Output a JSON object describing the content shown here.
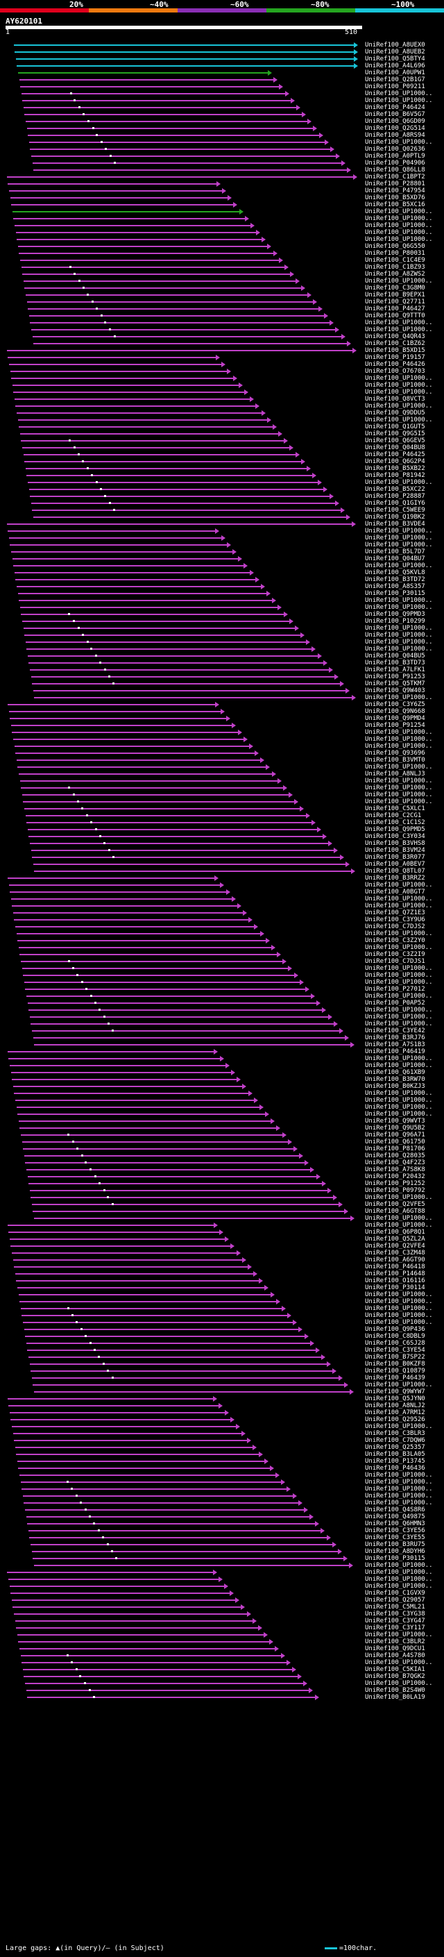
{
  "scale": {
    "labels": [
      "20%",
      "~40%",
      "~60%",
      "~80%",
      "~100%"
    ],
    "colors": [
      "#e0001c",
      "#f07a10",
      "#8a2fb5",
      "#25a520",
      "#18c4d8"
    ]
  },
  "query": {
    "name": "AY620101",
    "start": "1",
    "end": "510"
  },
  "hits": [
    "UniRef100_A8UEX0",
    "UniRef100_A8UEB2",
    "UniRef100_Q5BTY4",
    "UniRef100_A4L696",
    "UniRef100_A0UPW1",
    "UniRef100_Q2B1G7",
    "UniRef100_P09211",
    "UniRef100_UP1000..",
    "UniRef100_UP1000..",
    "UniRef100_P46424",
    "UniRef100_B6V5G7",
    "UniRef100_Q6GD09",
    "UniRef100_Q2G514",
    "UniRef100_A8RS94",
    "UniRef100_UP1000..",
    "UniRef100_Q02636",
    "UniRef100_A0PTL9",
    "UniRef100_P04906",
    "UniRef100_Q86LL8",
    "UniRef100_C1BPT2",
    "UniRef100_P28801",
    "UniRef100_P47954",
    "UniRef100_B5XD76",
    "UniRef100_B5XC16",
    "UniRef100_UP1000..",
    "UniRef100_UP1000..",
    "UniRef100_UP1000..",
    "UniRef100_UP1000..",
    "UniRef100_UP1000..",
    "UniRef100_Q6G550",
    "UniRef100_P80031",
    "UniRef100_C1C4E9",
    "UniRef100_C1BZ93",
    "UniRef100_A8ZWS2",
    "UniRef100_UP1000..",
    "UniRef100_C3G8M0",
    "UniRef100_B9EPX1",
    "UniRef100_Q27711",
    "UniRef100_P46427",
    "UniRef100_Q9TTT0",
    "UniRef100_UP1000..",
    "UniRef100_UP1000..",
    "UniRef100_Q4QR43",
    "UniRef100_C1BZ62",
    "UniRef100_B5XD15",
    "UniRef100_P19157",
    "UniRef100_P46426",
    "UniRef100_O76703",
    "UniRef100_UP1000..",
    "UniRef100_UP1000..",
    "UniRef100_UP1000..",
    "UniRef100_Q8VCT3",
    "UniRef100_UP1000..",
    "UniRef100_Q9DDU5",
    "UniRef100_UP1000..",
    "UniRef100_Q1GUT5",
    "UniRef100_Q9G5I5",
    "UniRef100_Q6GEV5",
    "UniRef100_Q04BU8",
    "UniRef100_P46425",
    "UniRef100_Q6G2P4",
    "UniRef100_B5XB22",
    "UniRef100_P81942",
    "UniRef100_UP1000..",
    "UniRef100_B5XC22",
    "UniRef100_P28887",
    "UniRef100_Q1GIY6",
    "UniRef100_C5WEE9",
    "UniRef100_Q19BK2",
    "UniRef100_B3VDE4",
    "UniRef100_UP1000..",
    "UniRef100_UP1000..",
    "UniRef100_UP1000..",
    "UniRef100_B5L7D7",
    "UniRef100_Q04BU7",
    "UniRef100_UP1000..",
    "UniRef100_Q5KVL8",
    "UniRef100_B3TD72",
    "UniRef100_A8S357",
    "UniRef100_P30115",
    "UniRef100_UP1000..",
    "UniRef100_UP1000..",
    "UniRef100_Q9PMD3",
    "UniRef100_P10299",
    "UniRef100_UP1000..",
    "UniRef100_UP1000..",
    "UniRef100_UP1000..",
    "UniRef100_UP1000..",
    "UniRef100_Q04BU5",
    "UniRef100_B3TD73",
    "UniRef100_A7LFK1",
    "UniRef100_P91253",
    "UniRef100_Q5TKM7",
    "UniRef100_Q9W403",
    "UniRef100_UP1000..",
    "UniRef100_C3Y6Z5",
    "UniRef100_Q9N668",
    "UniRef100_Q9PMD4",
    "UniRef100_P91254",
    "UniRef100_UP1000..",
    "UniRef100_UP1000..",
    "UniRef100_UP1000..",
    "UniRef100_Q93696",
    "UniRef100_B3VMT0",
    "UniRef100_UP1000..",
    "UniRef100_A8NLJ3",
    "UniRef100_UP1000..",
    "UniRef100_UP1000..",
    "UniRef100_UP1000..",
    "UniRef100_UP1000..",
    "UniRef100_C5XLC1",
    "UniRef100_C2CG1",
    "UniRef100_C1C1S2",
    "UniRef100_Q9PMD5",
    "UniRef100_C3Y034",
    "UniRef100_B3VHS8",
    "UniRef100_B3VM24",
    "UniRef100_B3R077",
    "UniRef100_A0BEV7",
    "UniRef100_Q8TL07",
    "UniRef100_B3RRZ2",
    "UniRef100_UP1000..",
    "UniRef100_A0BGT7",
    "UniRef100_UP1000..",
    "UniRef100_UP1000..",
    "UniRef100_Q7Z1E3",
    "UniRef100_C3Y9U6",
    "UniRef100_C7DJS2",
    "UniRef100_UP1000..",
    "UniRef100_C3Z2Y0",
    "UniRef100_UP1000..",
    "UniRef100_C3Z2I9",
    "UniRef100_C7DJS1",
    "UniRef100_UP1000..",
    "UniRef100_UP1000..",
    "UniRef100_UP1000..",
    "UniRef100_P27012",
    "UniRef100_UP1000..",
    "UniRef100_P0AP52",
    "UniRef100_UP1000..",
    "UniRef100_UP1000..",
    "UniRef100_UP1000..",
    "UniRef100_C3YE42",
    "UniRef100_B3RJ76",
    "UniRef100_A7S1B3",
    "UniRef100_P46419",
    "UniRef100_UP1000..",
    "UniRef100_UP1000..",
    "UniRef100_Q61XB9",
    "UniRef100_B3RW70",
    "UniRef100_B0KZJ3",
    "UniRef100_UP1000..",
    "UniRef100_UP1000..",
    "UniRef100_UP1000..",
    "UniRef100_UP1000..",
    "UniRef100_Q9WVT3",
    "UniRef100_Q9U5B2",
    "UniRef100_Q96A71",
    "UniRef100_Q61750",
    "UniRef100_P81706",
    "UniRef100_Q28035",
    "UniRef100_Q4F2Z3",
    "UniRef100_A7S8K8",
    "UniRef100_P20432",
    "UniRef100_P91252",
    "UniRef100_P09792",
    "UniRef100_UP1000..",
    "UniRef100_Q2VFE5",
    "UniRef100_A6GT88",
    "UniRef100_UP1000..",
    "UniRef100_UP1000..",
    "UniRef100_Q6P8Q1",
    "UniRef100_Q5ZL2A",
    "UniRef100_Q2VFE4",
    "UniRef100_C3ZM48",
    "UniRef100_A6GT90",
    "UniRef100_P46418",
    "UniRef100_P14648",
    "UniRef100_O16116",
    "UniRef100_P30114",
    "UniRef100_UP1000..",
    "UniRef100_UP1000..",
    "UniRef100_UP1000..",
    "UniRef100_UP1000..",
    "UniRef100_UP1000..",
    "UniRef100_Q9P436",
    "UniRef100_C8DBL9",
    "UniRef100_C6SJ28",
    "UniRef100_C3YE54",
    "UniRef100_B7SP22",
    "UniRef100_B0KZF8",
    "UniRef100_Q10879",
    "UniRef100_P46439",
    "UniRef100_UP1000..",
    "UniRef100_Q9WYW7",
    "UniRef100_Q5JYN0",
    "UniRef100_A8NLJ2",
    "UniRef100_A7RM12",
    "UniRef100_Q29526",
    "UniRef100_UP1000..",
    "UniRef100_C3BLR3",
    "UniRef100_C7DQW6",
    "UniRef100_Q25357",
    "UniRef100_B3LA05",
    "UniRef100_P13745",
    "UniRef100_P46436",
    "UniRef100_UP1000..",
    "UniRef100_UP1000..",
    "UniRef100_UP1000..",
    "UniRef100_UP1000..",
    "UniRef100_UP1000..",
    "UniRef100_Q4S8R6",
    "UniRef100_Q49875",
    "UniRef100_Q6HMN3",
    "UniRef100_C3YE56",
    "UniRef100_C3YE55",
    "UniRef100_B3RU75",
    "UniRef100_A8DYH6",
    "UniRef100_P30115",
    "UniRef100_UP1000..",
    "UniRef100_UP1000..",
    "UniRef100_UP1000..",
    "UniRef100_UP1000..",
    "UniRef100_C1GVX9",
    "UniRef100_Q29057",
    "UniRef100_C5ML21",
    "UniRef100_C3YG38",
    "UniRef100_C3YG47",
    "UniRef100_C3Y117",
    "UniRef100_UP1000..",
    "UniRef100_C3BLR2",
    "UniRef100_Q9DCU1",
    "UniRef100_A4S780",
    "UniRef100_UP1000..",
    "UniRef100_C5KIA1",
    "UniRef100_B7QGK2",
    "UniRef100_UP1000..",
    "UniRef100_B2S4W0",
    "UniRef100_B0LA19"
  ],
  "footer": {
    "gaps_text": "Large gaps: ▲(in Query)/— (in Subject)",
    "legend_text": "=100char."
  }
}
